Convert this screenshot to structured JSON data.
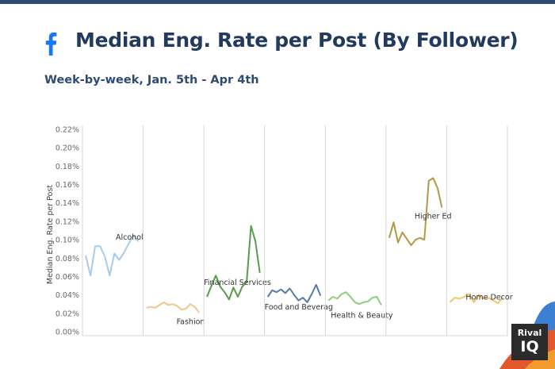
{
  "header": {
    "title": "Median Eng. Rate per Post (By Follower)",
    "subtitle": "Week-by-week, Jan. 5th - Apr 4th",
    "icon": "facebook-icon"
  },
  "brand": {
    "line1": "Rival",
    "line2": "IQ"
  },
  "colors": {
    "top_bar": "#2c4a73",
    "facebook": "#1877f2"
  },
  "chart_data": {
    "type": "line",
    "ylabel": "Median Eng. Rate per Post",
    "ylim": [
      0,
      0.22
    ],
    "yticks": [
      0.0,
      0.02,
      0.04,
      0.06,
      0.08,
      0.1,
      0.12,
      0.14,
      0.16,
      0.18,
      0.2,
      0.22
    ],
    "ytick_labels": [
      "0.00%",
      "0.02%",
      "0.04%",
      "0.06%",
      "0.08%",
      "0.10%",
      "0.12%",
      "0.14%",
      "0.16%",
      "0.18%",
      "0.20%",
      "0.22%"
    ],
    "grid": false,
    "series": [
      {
        "name": "Alcohol",
        "color": "#a9cbe6",
        "values": [
          0.083,
          0.061,
          0.093,
          0.093,
          0.082,
          0.061,
          0.085,
          0.078,
          0.086,
          0.096,
          0.105,
          0.098
        ]
      },
      {
        "name": "Fashion",
        "color": "#f5c48a",
        "values": [
          0.026,
          0.027,
          0.026,
          0.029,
          0.032,
          0.029,
          0.03,
          0.028,
          0.024,
          0.025,
          0.03,
          0.027,
          0.021
        ]
      },
      {
        "name": "Financial Services",
        "color": "#5c9a50",
        "values": [
          0.038,
          0.05,
          0.061,
          0.049,
          0.043,
          0.035,
          0.048,
          0.038,
          0.049,
          0.054,
          0.115,
          0.098,
          0.064
        ]
      },
      {
        "name": "Food and Beverag",
        "color": "#587aa4",
        "values": [
          0.038,
          0.045,
          0.043,
          0.046,
          0.042,
          0.047,
          0.04,
          0.034,
          0.037,
          0.032,
          0.041,
          0.051,
          0.039
        ]
      },
      {
        "name": "Health & Beauty",
        "color": "#8ccf7e",
        "values": [
          0.034,
          0.038,
          0.036,
          0.041,
          0.043,
          0.038,
          0.032,
          0.03,
          0.032,
          0.033,
          0.037,
          0.038,
          0.029
        ]
      },
      {
        "name": "Higher Ed",
        "color": "#b09a45",
        "values": [
          0.102,
          0.119,
          0.097,
          0.108,
          0.101,
          0.094,
          0.1,
          0.102,
          0.1,
          0.164,
          0.167,
          0.156,
          0.135
        ]
      },
      {
        "name": "Home Decor",
        "color": "#f2c66d",
        "values": [
          0.032,
          0.037,
          0.036,
          0.038,
          0.041,
          0.032,
          0.04,
          0.036,
          0.037,
          0.034,
          0.031,
          0.037
        ]
      }
    ]
  }
}
